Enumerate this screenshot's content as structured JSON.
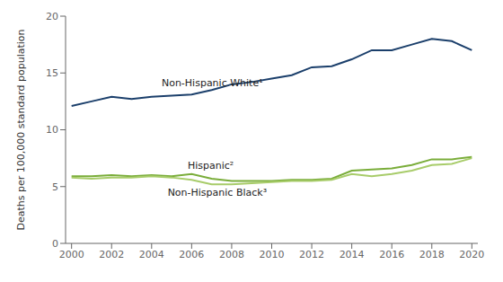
{
  "chart_data": {
    "type": "line",
    "ylabel": "Deaths per 100,000 standard population",
    "x": [
      2000,
      2001,
      2002,
      2003,
      2004,
      2005,
      2006,
      2007,
      2008,
      2009,
      2010,
      2011,
      2012,
      2013,
      2014,
      2015,
      2016,
      2017,
      2018,
      2019,
      2020
    ],
    "series": [
      {
        "color": "#1b3f6b",
        "values": [
          12.1,
          12.5,
          12.9,
          12.7,
          12.9,
          13.0,
          13.1,
          13.5,
          14.0,
          14.2,
          14.5,
          14.8,
          15.5,
          15.6,
          16.2,
          17.0,
          17.0,
          17.5,
          18.0,
          17.8,
          17.0
        ]
      },
      {
        "color": "#7aad3a",
        "values": [
          5.9,
          5.9,
          6.0,
          5.9,
          6.0,
          5.9,
          6.1,
          5.7,
          5.5,
          5.5,
          5.5,
          5.6,
          5.6,
          5.7,
          6.4,
          6.5,
          6.6,
          6.9,
          7.4,
          7.4,
          7.6
        ]
      },
      {
        "color": "#a8cc6a",
        "values": [
          5.8,
          5.7,
          5.8,
          5.8,
          5.9,
          5.8,
          5.6,
          5.2,
          5.2,
          5.3,
          5.4,
          5.5,
          5.5,
          5.6,
          6.1,
          5.9,
          6.1,
          6.4,
          6.9,
          7.0,
          7.5
        ]
      }
    ],
    "xlim": [
      1999.7,
      2020.3
    ],
    "xticks": [
      2000,
      2002,
      2004,
      2006,
      2008,
      2010,
      2012,
      2014,
      2016,
      2018,
      2020
    ],
    "ylim": [
      0,
      20
    ],
    "yticks": [
      0,
      5,
      10,
      15,
      20
    ],
    "grid": false,
    "annotations": [
      {
        "text": "Non-Hispanic White¹",
        "x": 2004.5,
        "y": 13.8
      },
      {
        "text": "Hispanic²",
        "x": 2005.8,
        "y": 6.55
      },
      {
        "text": "Non-Hispanic Black³",
        "x": 2004.8,
        "y": 4.85
      }
    ]
  }
}
